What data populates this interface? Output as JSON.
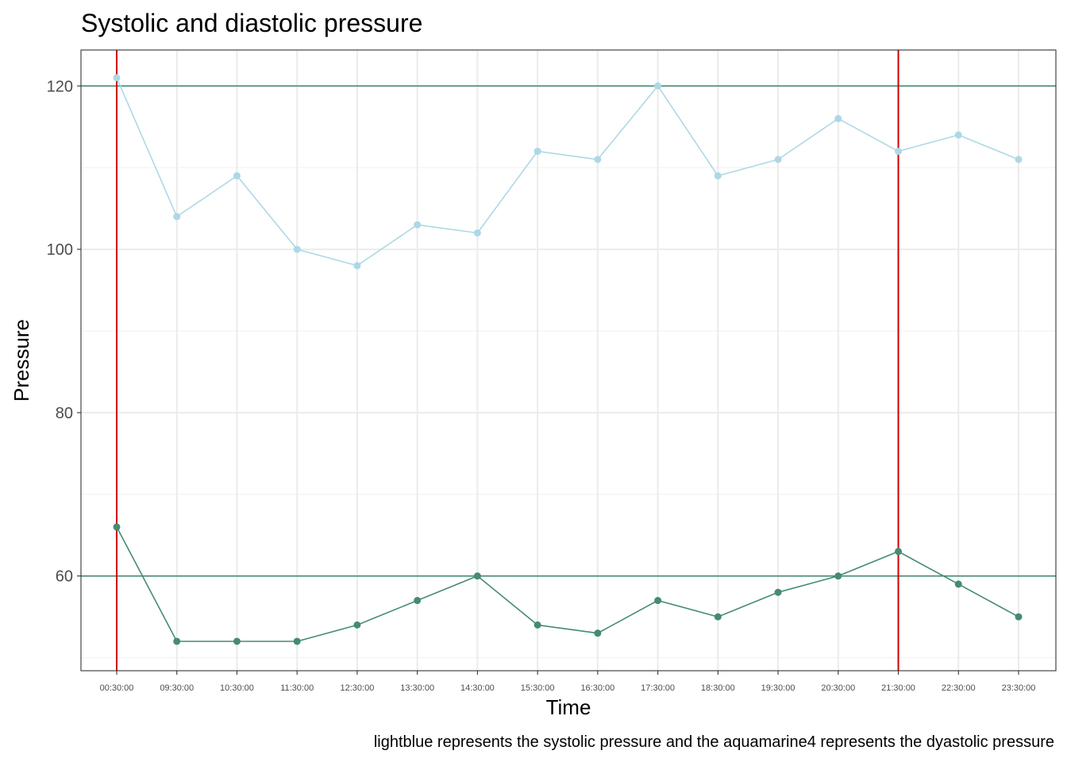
{
  "chart_data": {
    "type": "line",
    "title": "Systolic and diastolic pressure",
    "xlabel": "Time",
    "ylabel": "Pressure",
    "caption": "lightblue represents the systolic pressure and the aquamarine4 represents the dyastolic pressure",
    "categories": [
      "00:30:00",
      "09:30:00",
      "10:30:00",
      "11:30:00",
      "12:30:00",
      "13:30:00",
      "14:30:00",
      "15:30:00",
      "16:30:00",
      "17:30:00",
      "18:30:00",
      "19:30:00",
      "20:30:00",
      "21:30:00",
      "22:30:00",
      "23:30:00"
    ],
    "series": [
      {
        "color": "#add8e6",
        "values": [
          121,
          104,
          109,
          100,
          98,
          103,
          102,
          112,
          111,
          120,
          109,
          111,
          116,
          112,
          114,
          111
        ]
      },
      {
        "color": "#458b74",
        "values": [
          66,
          52,
          52,
          52,
          54,
          57,
          60,
          54,
          53,
          57,
          55,
          58,
          60,
          63,
          59,
          55
        ]
      }
    ],
    "ylim": [
      48.4,
      124.4
    ],
    "y_ticks": [
      60,
      80,
      100,
      120
    ],
    "y_minor_ticks": [
      50,
      70,
      90,
      110
    ],
    "hlines": [
      {
        "value": 120,
        "color": "#458b74"
      },
      {
        "value": 60,
        "color": "#458b74"
      }
    ],
    "vlines": [
      {
        "category": "00:30:00",
        "color": "#cc0000"
      },
      {
        "category": "21:30:00",
        "color": "#cc0000"
      }
    ],
    "grid": true,
    "legend": "none"
  }
}
